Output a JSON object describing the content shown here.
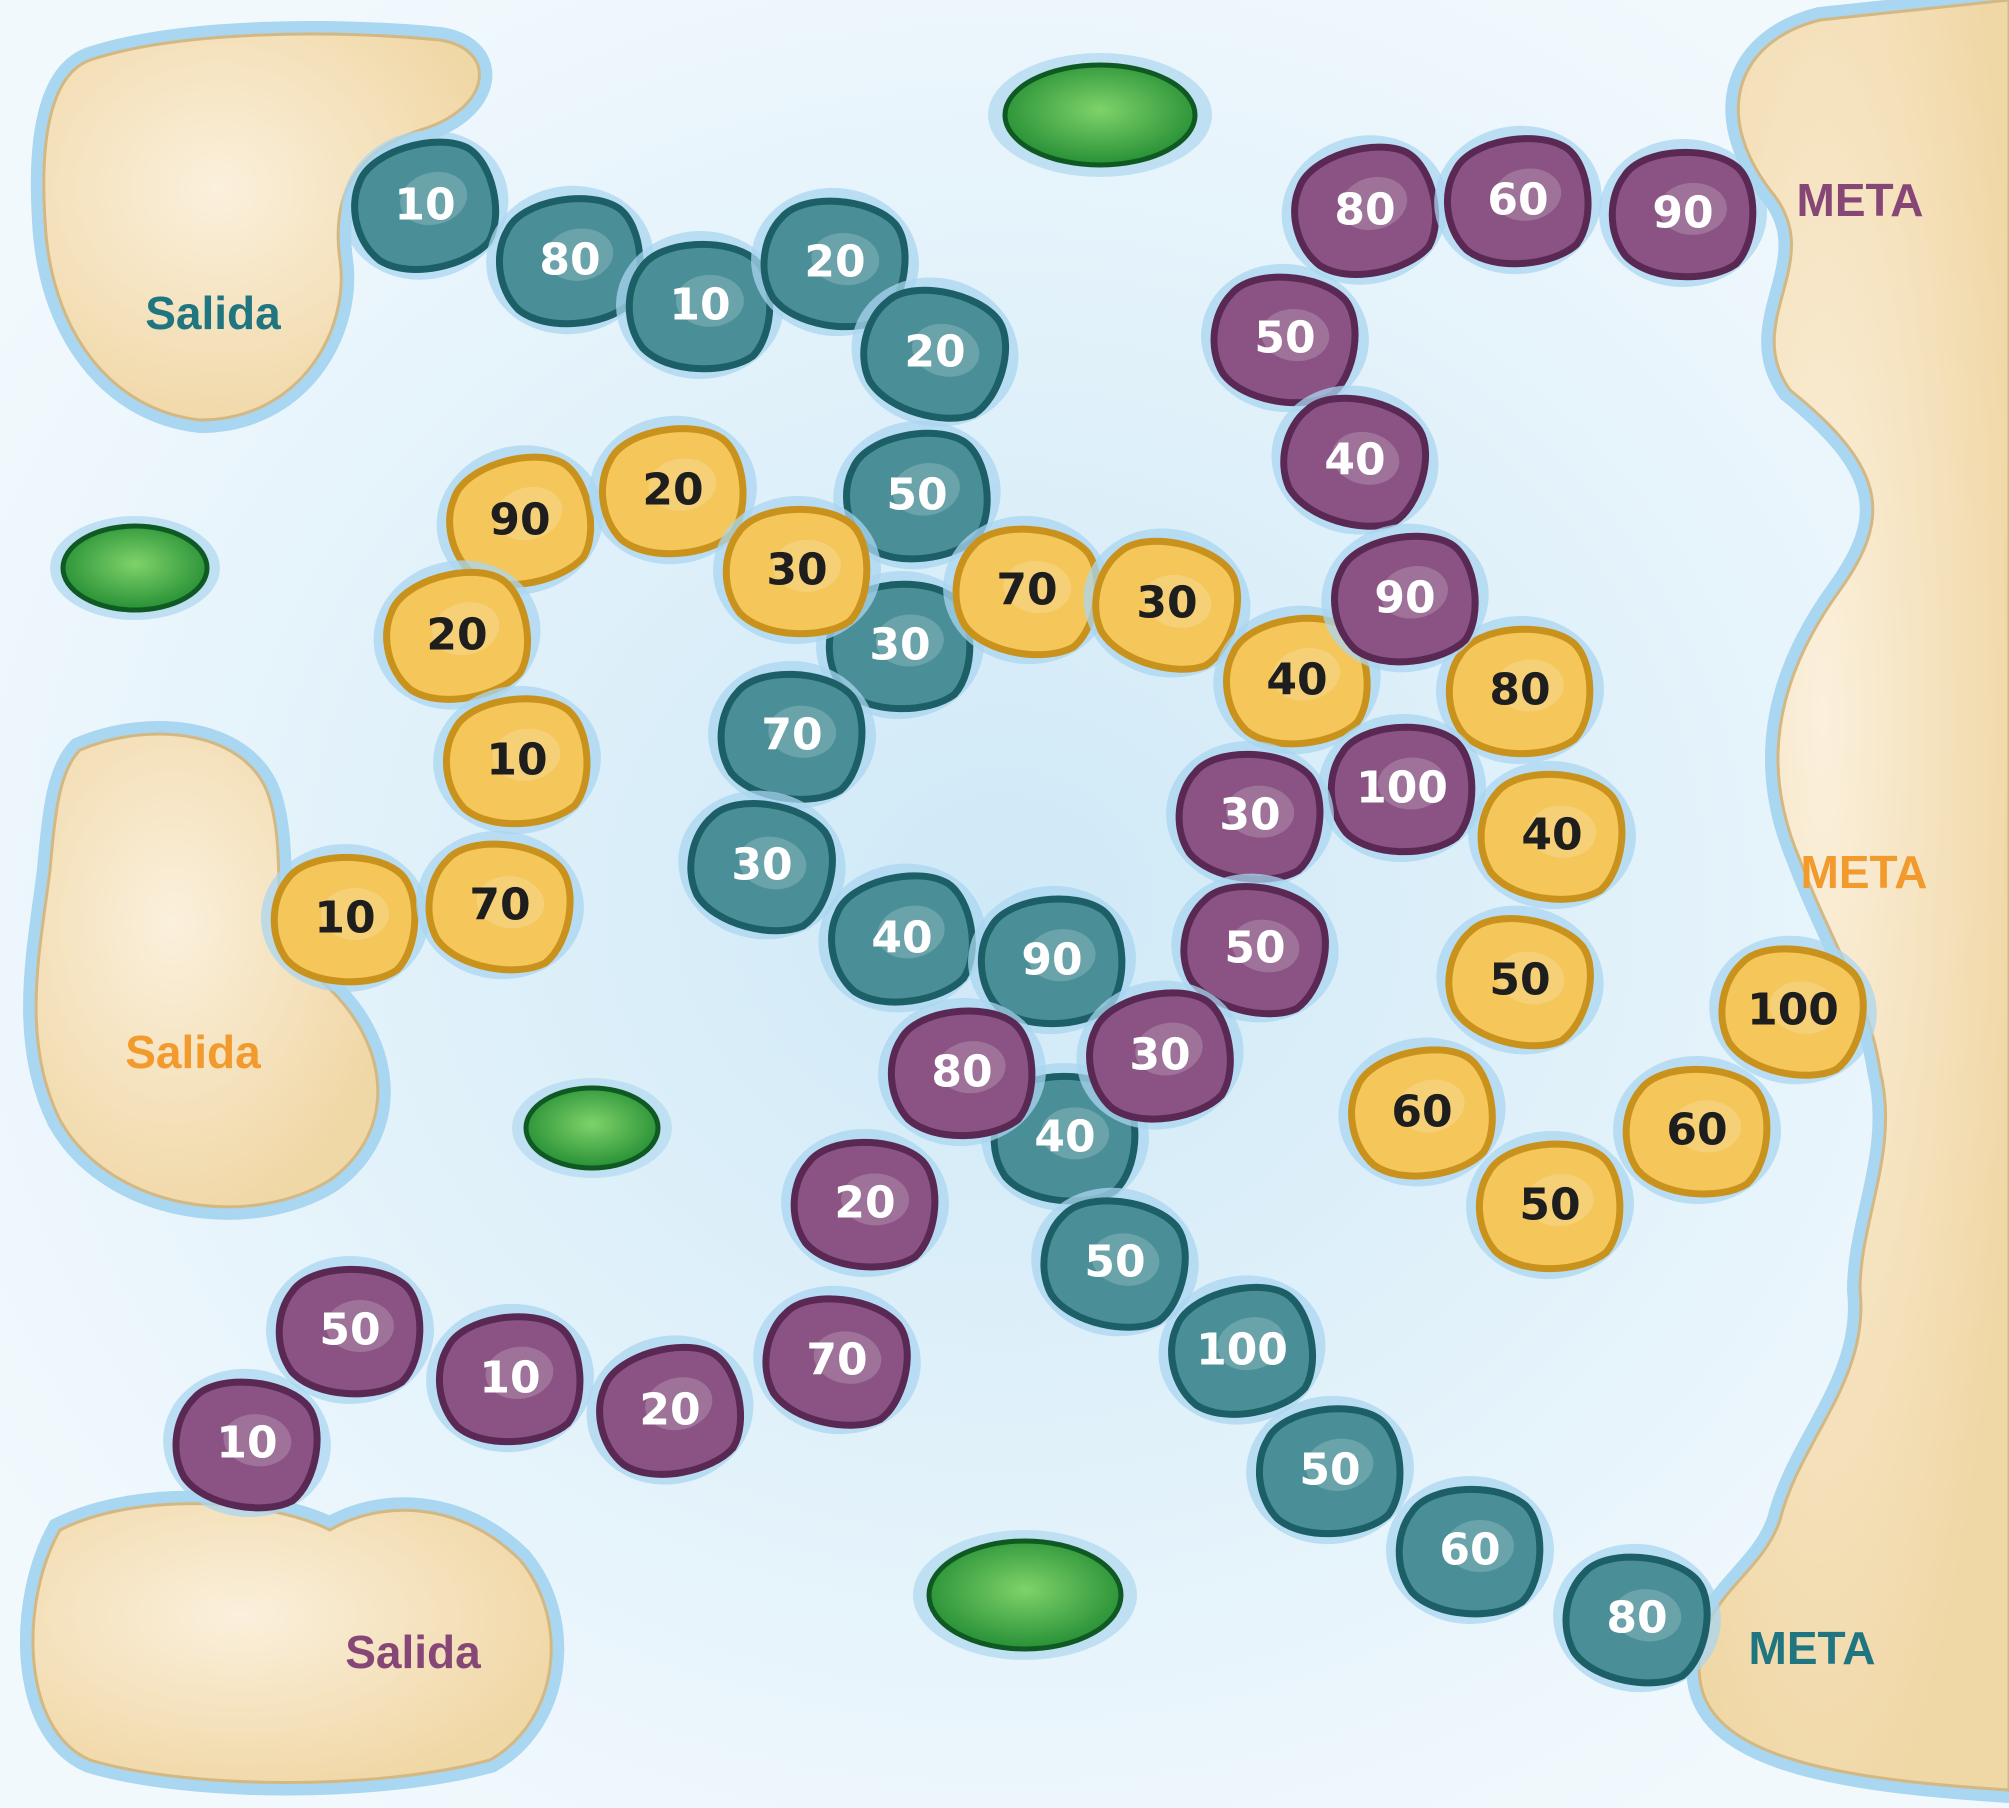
{
  "colors": {
    "water": "#dcf0fa",
    "water_line": "#9fd0ee",
    "sand": "#f5dfb6",
    "sand_edge": "#dcc08c",
    "teal_fill": "#4a8f97",
    "teal_edge": "#1d5f66",
    "purple_fill": "#8a5383",
    "purple_edge": "#5a2953",
    "gold_fill": "#f5c65a",
    "gold_edge": "#c9921d",
    "lily": "#2e9b3f",
    "label_teal": "#1f7580",
    "label_purple": "#874776",
    "label_gold": "#f39a2d"
  },
  "labels": {
    "teal_start": "Salida",
    "gold_start": "Salida",
    "purple_start": "Salida",
    "purple_goal": "META",
    "gold_goal": "META",
    "teal_goal": "META"
  },
  "paths": {
    "teal": [
      "10",
      "80",
      "10",
      "20",
      "20",
      "50",
      "30",
      "70",
      "30",
      "40",
      "90",
      "40",
      "50",
      "100",
      "50",
      "60",
      "80"
    ],
    "gold": [
      "90",
      "20",
      "30",
      "70",
      "30",
      "40",
      "80",
      "40",
      "50",
      "60",
      "50",
      "60",
      "100",
      "20",
      "10",
      "10",
      "70"
    ],
    "purple": [
      "80",
      "60",
      "90",
      "50",
      "40",
      "90",
      "100",
      "30",
      "50",
      "30",
      "80",
      "20",
      "70",
      "20",
      "10",
      "50",
      "10"
    ]
  }
}
